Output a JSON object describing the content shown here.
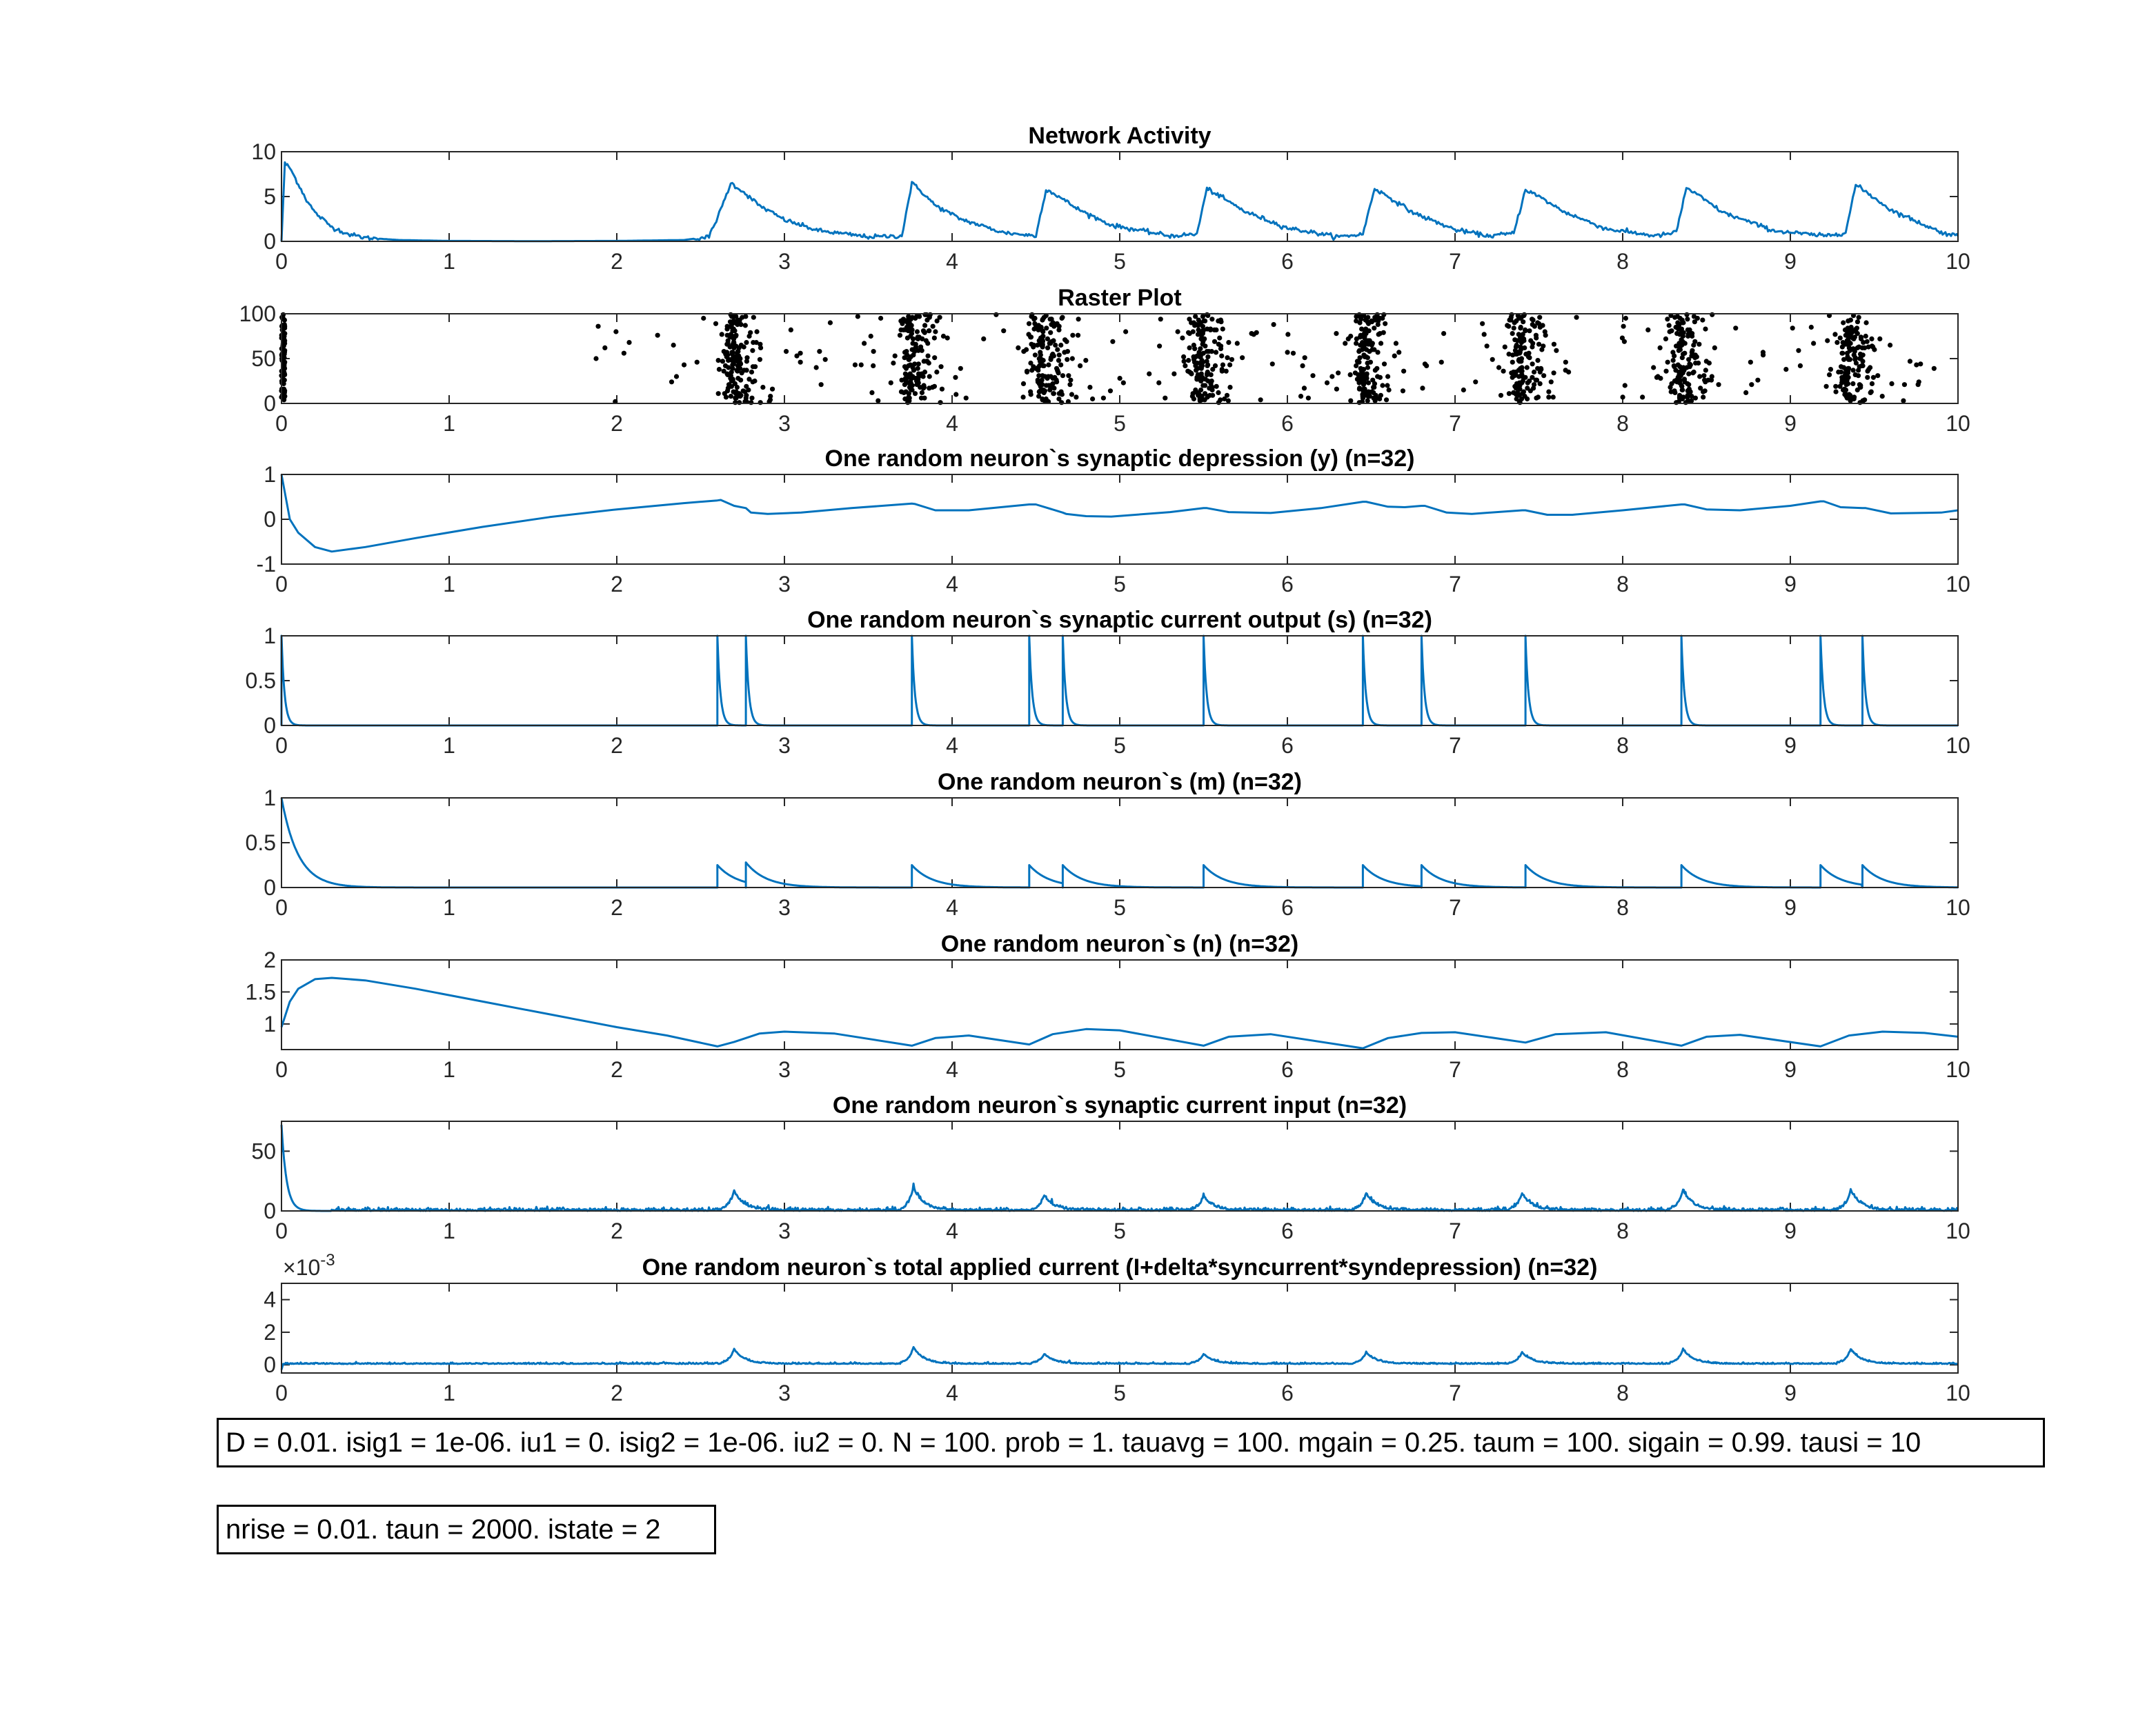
{
  "chart_data": [
    {
      "type": "line",
      "title": "Network Activity",
      "xlim": [
        0,
        10
      ],
      "ylim": [
        0,
        10
      ],
      "xticks": [
        0,
        1,
        2,
        3,
        4,
        5,
        6,
        7,
        8,
        9,
        10
      ],
      "yticks": [
        0,
        5,
        10
      ],
      "color": "#0072BD",
      "x": [
        0,
        0.02,
        0.05,
        0.1,
        0.15,
        0.2,
        0.3,
        0.4,
        0.5,
        0.7,
        1.0,
        1.5,
        2.0,
        2.4,
        2.55,
        2.62,
        2.68,
        2.75,
        2.85,
        3.0,
        3.2,
        3.5,
        3.7,
        3.76,
        3.82,
        3.9,
        4.05,
        4.3,
        4.5,
        4.56,
        4.62,
        4.75,
        4.95,
        5.3,
        5.46,
        5.52,
        5.6,
        5.75,
        6.0,
        6.3,
        6.45,
        6.52,
        6.6,
        6.75,
        7.0,
        7.2,
        7.35,
        7.42,
        7.5,
        7.65,
        7.9,
        8.2,
        8.32,
        8.38,
        8.46,
        8.6,
        8.9,
        9.2,
        9.33,
        9.39,
        9.46,
        9.6,
        9.9,
        10
      ],
      "y": [
        0,
        8.7,
        8.2,
        6.4,
        4.6,
        3.2,
        1.6,
        0.8,
        0.4,
        0.15,
        0.05,
        0.02,
        0.05,
        0.15,
        0.5,
        3.5,
        6.5,
        5.6,
        4.0,
        2.4,
        1.2,
        0.5,
        0.6,
        6.5,
        5.5,
        4.0,
        2.5,
        1.0,
        0.6,
        5.8,
        5.2,
        3.6,
        1.8,
        0.6,
        0.8,
        5.9,
        5.0,
        3.3,
        1.5,
        0.5,
        0.8,
        5.9,
        5.0,
        3.2,
        1.3,
        0.6,
        0.9,
        5.8,
        5.0,
        3.3,
        1.4,
        0.6,
        1.0,
        6.0,
        5.0,
        3.2,
        1.2,
        0.6,
        1.0,
        6.3,
        5.4,
        3.5,
        1.0,
        0.6
      ]
    },
    {
      "type": "scatter",
      "title": "Raster Plot",
      "xlim": [
        0,
        10
      ],
      "ylim": [
        0,
        100
      ],
      "xticks": [
        0,
        1,
        2,
        3,
        4,
        5,
        6,
        7,
        8,
        9,
        10
      ],
      "yticks": [
        0,
        50,
        100
      ],
      "color": "#000000",
      "bursts": [
        {
          "center": 0.0,
          "spread": 0.01,
          "count": 100
        },
        {
          "center": 2.7,
          "spread": 0.06,
          "count": 150
        },
        {
          "center": 3.77,
          "spread": 0.06,
          "count": 140
        },
        {
          "center": 4.55,
          "spread": 0.08,
          "count": 150
        },
        {
          "center": 5.5,
          "spread": 0.07,
          "count": 140
        },
        {
          "center": 6.47,
          "spread": 0.06,
          "count": 140
        },
        {
          "center": 7.4,
          "spread": 0.07,
          "count": 140
        },
        {
          "center": 8.36,
          "spread": 0.06,
          "count": 140
        },
        {
          "center": 9.36,
          "spread": 0.06,
          "count": 130
        }
      ],
      "background_spikes": 220
    },
    {
      "type": "line",
      "title": "One random neuron`s synaptic depression (y) (n=32)",
      "xlim": [
        0,
        10
      ],
      "ylim": [
        -1,
        1
      ],
      "xticks": [
        0,
        1,
        2,
        3,
        4,
        5,
        6,
        7,
        8,
        9,
        10
      ],
      "yticks": [
        -1,
        0,
        1
      ],
      "color": "#0072BD",
      "x": [
        0,
        0.05,
        0.1,
        0.2,
        0.3,
        0.5,
        0.8,
        1.2,
        1.6,
        2.0,
        2.4,
        2.6,
        2.62,
        2.7,
        2.77,
        2.8,
        2.9,
        3.1,
        3.4,
        3.76,
        3.78,
        3.9,
        4.1,
        4.46,
        4.5,
        4.66,
        4.68,
        4.8,
        4.95,
        5.3,
        5.5,
        5.52,
        5.65,
        5.9,
        6.2,
        6.45,
        6.47,
        6.6,
        6.7,
        6.8,
        6.82,
        6.95,
        7.1,
        7.4,
        7.42,
        7.55,
        7.7,
        8.0,
        8.35,
        8.37,
        8.5,
        8.7,
        9.0,
        9.18,
        9.2,
        9.3,
        9.43,
        9.45,
        9.6,
        9.9,
        10
      ],
      "y": [
        1,
        0,
        -0.3,
        -0.62,
        -0.72,
        -0.62,
        -0.42,
        -0.17,
        0.05,
        0.22,
        0.36,
        0.42,
        0.43,
        0.3,
        0.25,
        0.15,
        0.12,
        0.15,
        0.25,
        0.35,
        0.34,
        0.2,
        0.2,
        0.33,
        0.33,
        0.15,
        0.12,
        0.07,
        0.06,
        0.16,
        0.25,
        0.25,
        0.16,
        0.14,
        0.25,
        0.39,
        0.39,
        0.28,
        0.27,
        0.3,
        0.3,
        0.15,
        0.12,
        0.2,
        0.2,
        0.1,
        0.1,
        0.2,
        0.33,
        0.33,
        0.22,
        0.2,
        0.3,
        0.4,
        0.4,
        0.27,
        0.25,
        0.25,
        0.13,
        0.15,
        0.2
      ]
    },
    {
      "type": "line",
      "title": "One random neuron`s synaptic current output (s) (n=32)",
      "xlim": [
        0,
        10
      ],
      "ylim": [
        0,
        1
      ],
      "xticks": [
        0,
        1,
        2,
        3,
        4,
        5,
        6,
        7,
        8,
        9,
        10
      ],
      "yticks": [
        0,
        0.5,
        1
      ],
      "color": "#0072BD",
      "spikes": [
        0,
        2.6,
        2.77,
        3.76,
        4.46,
        4.66,
        5.5,
        6.45,
        6.8,
        7.42,
        8.35,
        9.18,
        9.43
      ]
    },
    {
      "type": "line",
      "title": "One random neuron`s (m) (n=32)",
      "xlim": [
        0,
        10
      ],
      "ylim": [
        0,
        1
      ],
      "xticks": [
        0,
        1,
        2,
        3,
        4,
        5,
        6,
        7,
        8,
        9,
        10
      ],
      "yticks": [
        0,
        0.5,
        1
      ],
      "color": "#0072BD",
      "initial": 1.0,
      "spikes": [
        2.6,
        2.77,
        3.76,
        4.46,
        4.66,
        5.5,
        6.45,
        6.8,
        7.42,
        8.35,
        9.18,
        9.43
      ],
      "spike_height": 0.25
    },
    {
      "type": "line",
      "title": "One random neuron`s (n) (n=32)",
      "xlim": [
        0,
        10
      ],
      "ylim": [
        0.6,
        2
      ],
      "xticks": [
        0,
        1,
        2,
        3,
        4,
        5,
        6,
        7,
        8,
        9,
        10
      ],
      "yticks": [
        1,
        1.5,
        2
      ],
      "color": "#0072BD",
      "x": [
        0,
        0.05,
        0.1,
        0.2,
        0.3,
        0.5,
        0.8,
        1.2,
        1.6,
        2.0,
        2.3,
        2.6,
        2.7,
        2.77,
        2.85,
        3.0,
        3.3,
        3.76,
        3.9,
        4.1,
        4.46,
        4.6,
        4.8,
        5.0,
        5.5,
        5.65,
        5.9,
        6.45,
        6.6,
        6.8,
        7.0,
        7.42,
        7.6,
        7.9,
        8.35,
        8.5,
        8.7,
        9.18,
        9.35,
        9.55,
        9.8,
        10
      ],
      "y": [
        0.95,
        1.35,
        1.55,
        1.7,
        1.72,
        1.68,
        1.55,
        1.35,
        1.15,
        0.95,
        0.82,
        0.65,
        0.72,
        0.78,
        0.85,
        0.88,
        0.85,
        0.66,
        0.78,
        0.82,
        0.68,
        0.84,
        0.92,
        0.9,
        0.66,
        0.8,
        0.84,
        0.62,
        0.78,
        0.86,
        0.87,
        0.71,
        0.84,
        0.87,
        0.66,
        0.8,
        0.83,
        0.65,
        0.82,
        0.88,
        0.86,
        0.8
      ]
    },
    {
      "type": "line",
      "title": "One random neuron`s synaptic current input (n=32)",
      "xlim": [
        0,
        10
      ],
      "ylim": [
        0,
        75
      ],
      "xticks": [
        0,
        1,
        2,
        3,
        4,
        5,
        6,
        7,
        8,
        9,
        10
      ],
      "yticks": [
        0,
        50
      ],
      "color": "#0072BD",
      "initial": 72,
      "peaks": [
        [
          2.7,
          16
        ],
        [
          3.77,
          19
        ],
        [
          4.55,
          12
        ],
        [
          5.5,
          12
        ],
        [
          6.47,
          14
        ],
        [
          7.4,
          14
        ],
        [
          8.36,
          17
        ],
        [
          9.36,
          17
        ]
      ]
    },
    {
      "type": "line",
      "title": "One random neuron`s total applied current (I+delta*syncurrent*syndepression) (n=32)",
      "exponent_label": "×10",
      "exponent_power": "-3",
      "xlim": [
        0,
        10
      ],
      "ylim": [
        -0.5,
        5
      ],
      "xticks": [
        0,
        1,
        2,
        3,
        4,
        5,
        6,
        7,
        8,
        9,
        10
      ],
      "yticks": [
        0,
        2,
        4
      ],
      "color": "#0072BD",
      "baseline": 0.05,
      "peaks": [
        [
          2.7,
          0.9
        ],
        [
          3.77,
          1.0
        ],
        [
          4.55,
          0.6
        ],
        [
          5.5,
          0.6
        ],
        [
          6.47,
          0.7
        ],
        [
          7.4,
          0.7
        ],
        [
          8.36,
          0.9
        ],
        [
          9.36,
          0.9
        ]
      ]
    }
  ],
  "parameters": {
    "line1": "D = 0.01. isig1 = 1e-06. iu1 = 0. isig2 = 1e-06. iu2 = 0. N = 100. prob = 1. tauavg = 100. mgain = 0.25. taum = 100. sigain = 0.99. tausi = 10",
    "line2": "nrise = 0.01. taun = 2000. istate = 2"
  }
}
